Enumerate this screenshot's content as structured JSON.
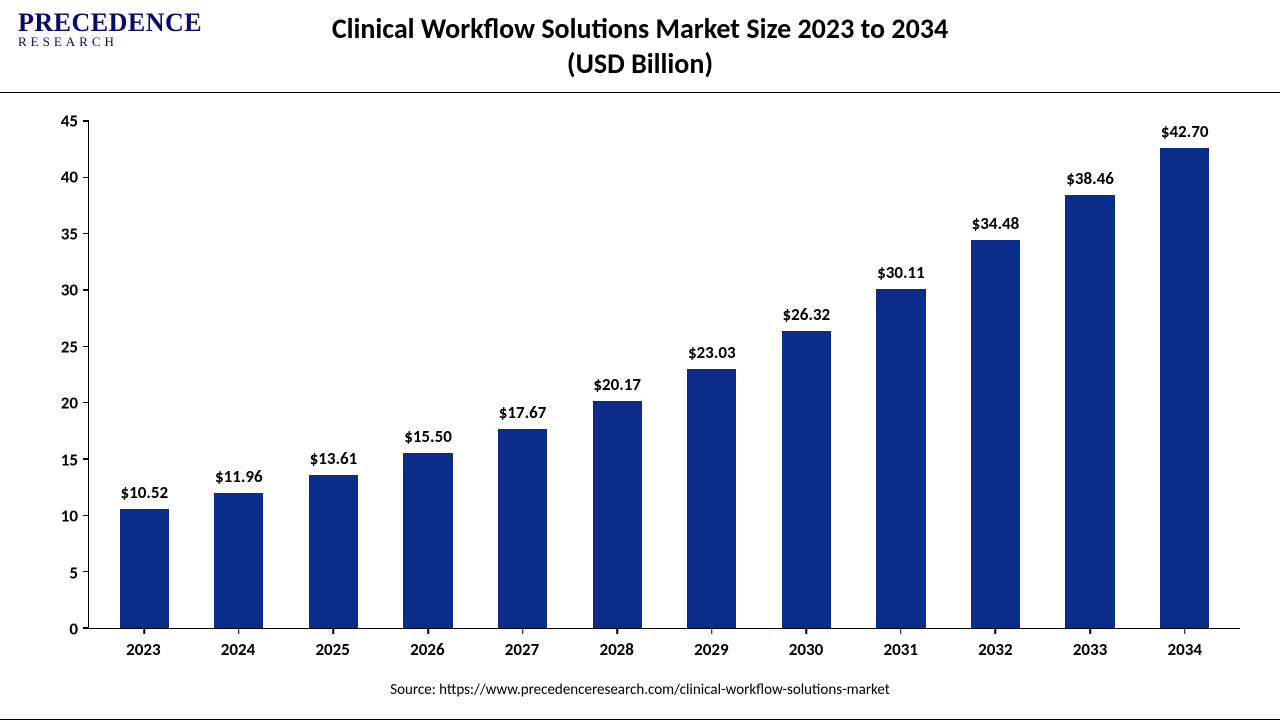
{
  "logo": {
    "top": "PRECEDENCE",
    "bottom": "RESEARCH",
    "color": "#0a0a6e"
  },
  "title": {
    "line1": "Clinical Workflow Solutions Market Size 2023 to 2034",
    "line2": "(USD Billion)",
    "fontsize": 28,
    "color": "#000000"
  },
  "chart": {
    "type": "bar",
    "categories": [
      "2023",
      "2024",
      "2025",
      "2026",
      "2027",
      "2028",
      "2029",
      "2030",
      "2031",
      "2032",
      "2033",
      "2034"
    ],
    "values": [
      10.52,
      11.96,
      13.61,
      15.5,
      17.67,
      20.17,
      23.03,
      26.32,
      30.11,
      34.48,
      38.46,
      42.7
    ],
    "value_labels": [
      "$10.52",
      "$11.96",
      "$13.61",
      "$15.50",
      "$17.67",
      "$20.17",
      "$23.03",
      "$26.32",
      "$30.11",
      "$34.48",
      "$38.46",
      "$42.70"
    ],
    "bar_color": "#0a2d8a",
    "ylim": [
      0,
      45
    ],
    "ytick_step": 5,
    "yticks": [
      0,
      5,
      10,
      15,
      20,
      25,
      30,
      35,
      40,
      45
    ],
    "background_color": "#ffffff",
    "axis_color": "#000000",
    "label_fontsize": 17,
    "bar_width": 0.52
  },
  "source": "Source: https://www.precedenceresearch.com/clinical-workflow-solutions-market"
}
